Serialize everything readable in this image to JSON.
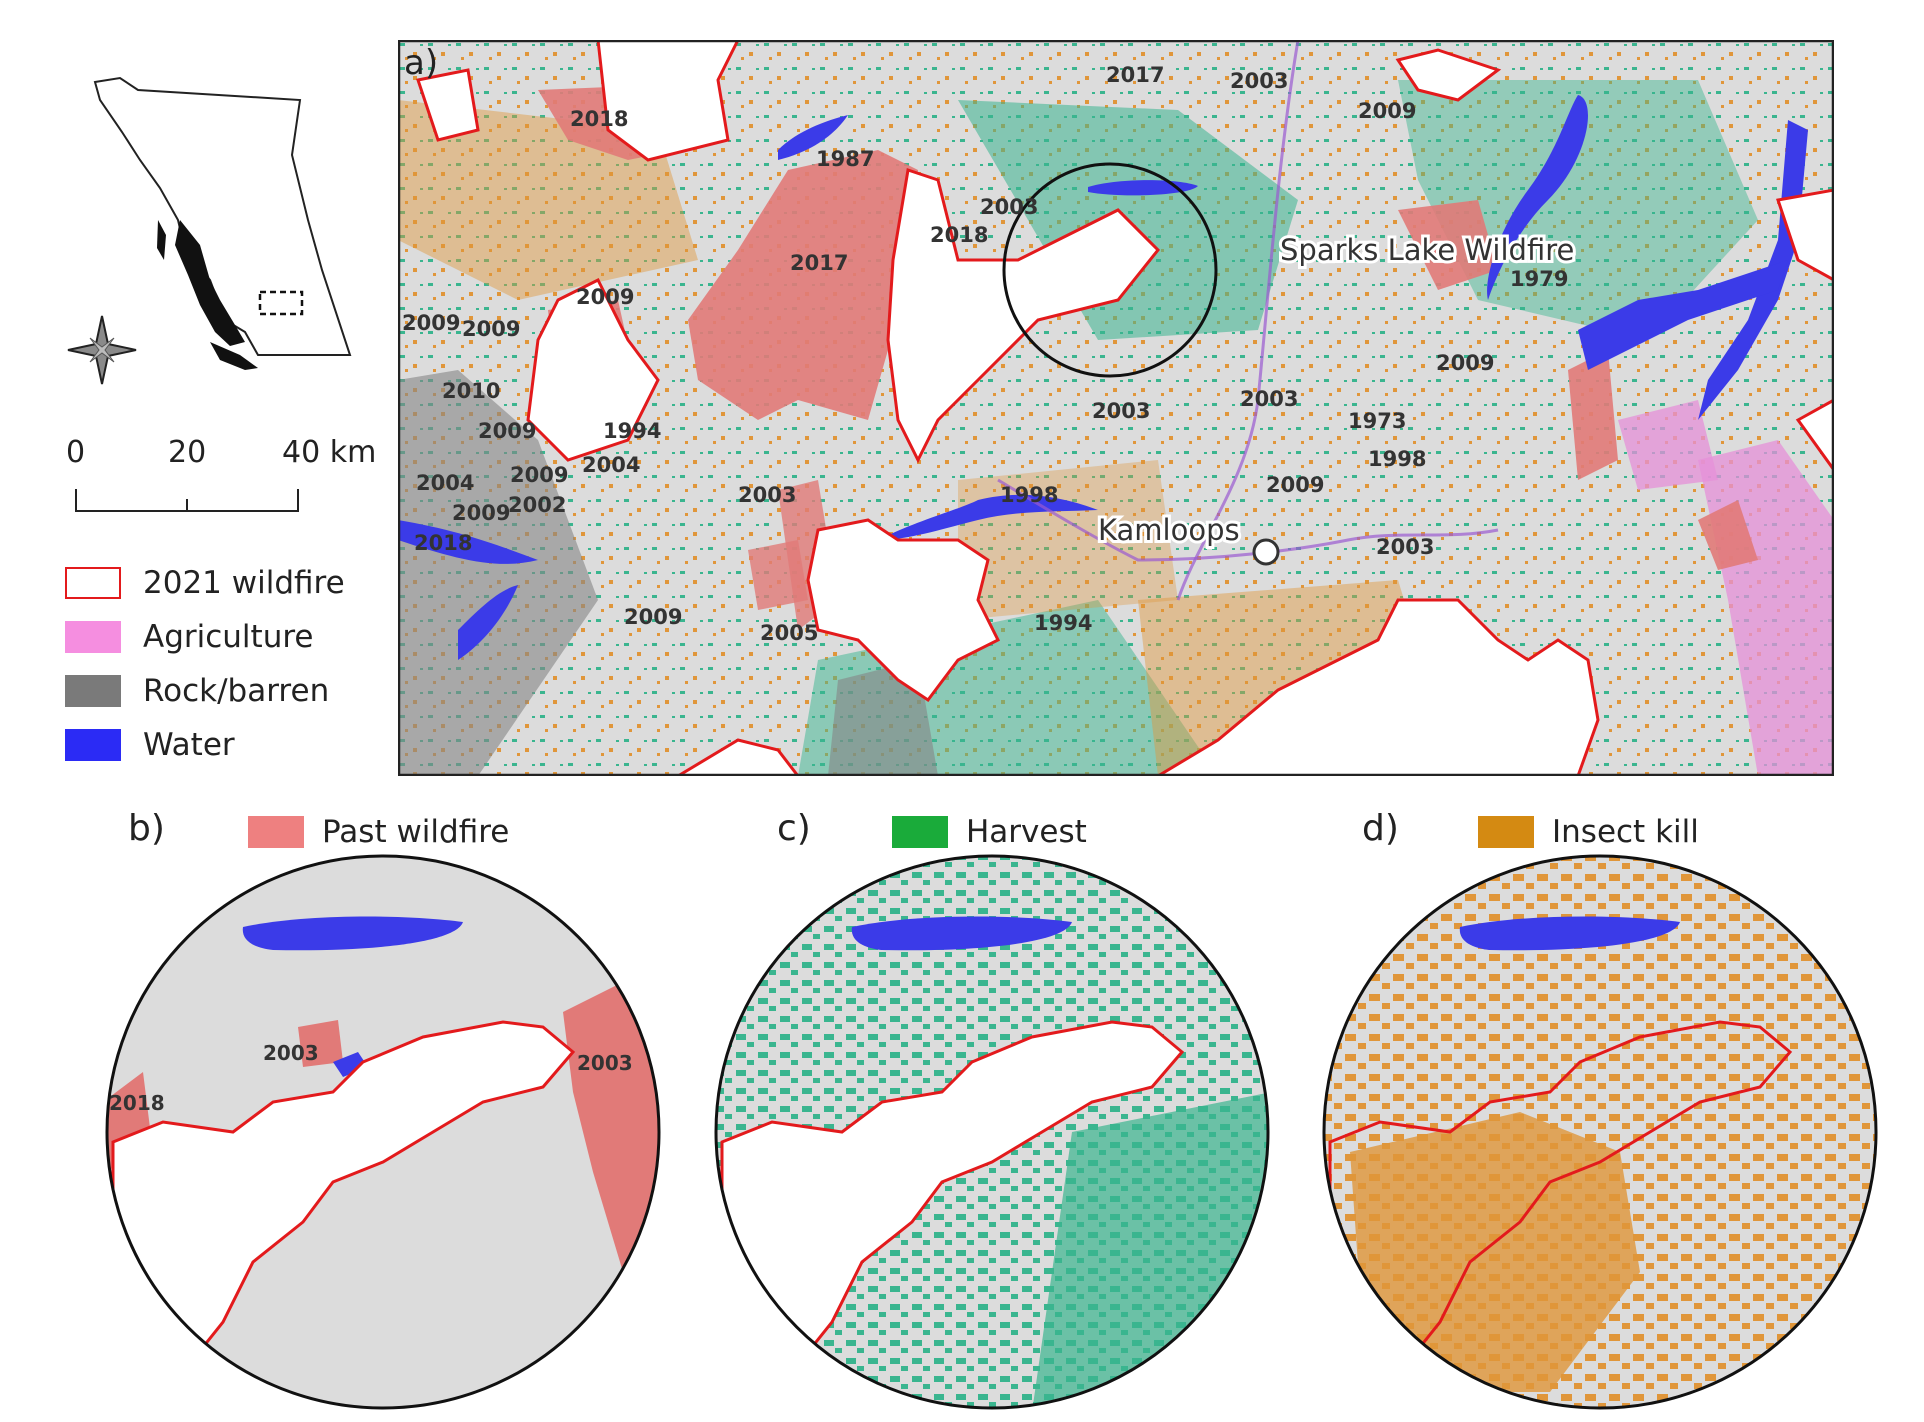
{
  "panels": {
    "a": "a)",
    "b": "b)",
    "c": "c)",
    "d": "d)"
  },
  "scale_bar": {
    "ticks": [
      "0",
      "20",
      "40 km"
    ]
  },
  "legend": [
    {
      "label": "2021 wildfire",
      "color": "#e31a1c",
      "style": "outline"
    },
    {
      "label": "Agriculture",
      "color": "#f58ee0",
      "style": "fill"
    },
    {
      "label": "Rock/barren",
      "color": "#7a7a7a",
      "style": "fill"
    },
    {
      "label": "Water",
      "color": "#2b2bf5",
      "style": "fill"
    }
  ],
  "panel_legends": {
    "b": {
      "label": "Past wildfire",
      "color": "#ee8080"
    },
    "c": {
      "label": "Harvest",
      "color": "#1aab3a"
    },
    "d": {
      "label": "Insect kill",
      "color": "#d48a12"
    }
  },
  "map_a": {
    "highlight_label": "Sparks Lake Wildfire",
    "city_label": "Kamloops",
    "year_labels": [
      "2017",
      "2003",
      "2009",
      "2018",
      "1987",
      "2003",
      "2018",
      "2017",
      "1979",
      "2009",
      "2009",
      "2009",
      "2009",
      "2010",
      "2009",
      "1994",
      "2004",
      "2004",
      "2009",
      "2002",
      "2009",
      "2018",
      "2003",
      "2003",
      "2003",
      "1973",
      "1998",
      "1998",
      "2009",
      "2003",
      "2009",
      "2005",
      "1994"
    ]
  },
  "panel_b_labels": [
    "2003",
    "2003",
    "2018"
  ],
  "colors": {
    "background": "#dcdcdc",
    "past_wildfire": "#e17a78",
    "harvest": "#3ab58f",
    "insect": "#e0963a",
    "water": "#3b3be8",
    "fire_outline": "#e31a1c",
    "agriculture": "#e690d8",
    "rock": "#858585"
  }
}
